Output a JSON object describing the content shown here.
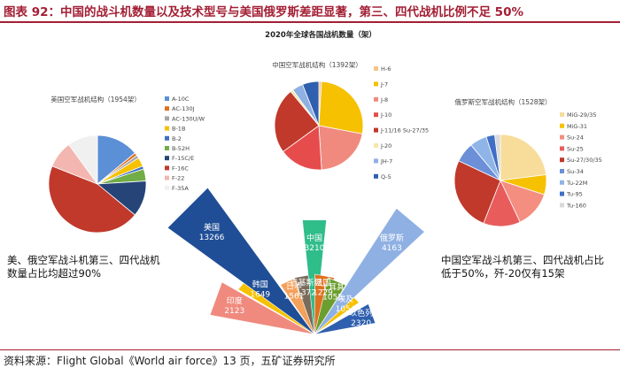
{
  "title": "图表 92：中国的战斗机数量以及技术型号与美国俄罗斯差距显著，第三、四代战机比例不足 50%",
  "source": "资料来源：Flight Global《World air force》13 页，五矿证券研究所",
  "chart_data": [
    {
      "type": "pie",
      "id": "usa",
      "title": "美国空军战机结构（1954架）",
      "categories": [
        "A-10C",
        "AC-130J",
        "AC-130U/W",
        "B-1B",
        "B-2",
        "B-52H",
        "F-15C/E",
        "F-16C",
        "F-22",
        "F-35A"
      ],
      "values": [
        14,
        1,
        1,
        3,
        1,
        4,
        12,
        45,
        9,
        10
      ],
      "colors": [
        "#5b8fd6",
        "#e0701f",
        "#a6a6a6",
        "#f6c100",
        "#3f6fc4",
        "#70ad47",
        "#264478",
        "#c0392b",
        "#f4b6b0",
        "#f0f0f0"
      ]
    },
    {
      "type": "pie",
      "id": "china",
      "title": "中国空军战机结构（1392架）",
      "categories": [
        "H-6",
        "J-7",
        "J-8",
        "J-10",
        "J-11/16 Su-27/35",
        "J-20",
        "JH-7",
        "Q-5"
      ],
      "values": [
        1,
        27,
        21,
        16,
        24,
        1,
        4,
        6
      ],
      "colors": [
        "#f4c48a",
        "#f6c100",
        "#f08a7e",
        "#e74c4c",
        "#c0392b",
        "#f7e7a8",
        "#8fb0e3",
        "#2f5faf"
      ]
    },
    {
      "type": "pie",
      "id": "russia",
      "title": "俄罗斯空军战机结构（1528架）",
      "categories": [
        "MiG-29/35",
        "MiG-31",
        "Su-24",
        "Su-25",
        "Su-27/30/35",
        "Su-34",
        "Tu-22M",
        "Tu-95",
        "Tu-160"
      ],
      "values": [
        23,
        7,
        13,
        13,
        26,
        7,
        6,
        3,
        2
      ],
      "colors": [
        "#f7dc9a",
        "#f6c100",
        "#f48e80",
        "#e85c5c",
        "#c0392b",
        "#6c8fd8",
        "#8fb5e8",
        "#3f6fc4",
        "#d9d9d9"
      ]
    },
    {
      "type": "radial-bar",
      "id": "world",
      "title": "2020年全球各国战机数量（架）",
      "categories": [
        "印度",
        "韩国",
        "日本",
        "巴基斯坦",
        "中国",
        "法国",
        "土耳其",
        "埃及",
        "以色列",
        "俄罗斯",
        "美国"
      ],
      "values": [
        2123,
        1649,
        1561,
        1372,
        3210,
        1229,
        1055,
        1054,
        2320,
        4163,
        13266
      ],
      "colors": [
        "#f08a7e",
        "#f6c100",
        "#f4a15b",
        "#7a6b5b",
        "#2fbd8a",
        "#e0701f",
        "#6b9e2f",
        "#f6c100",
        "#2f5faf",
        "#8fb0e3",
        "#1f4e96"
      ]
    }
  ],
  "notes": {
    "left": "美、俄空军战斗机第三、四代战机数量占比均超过90%",
    "right": "中国空军战斗机第三、四代战机占比低于50%，歼-20仅有15架"
  }
}
